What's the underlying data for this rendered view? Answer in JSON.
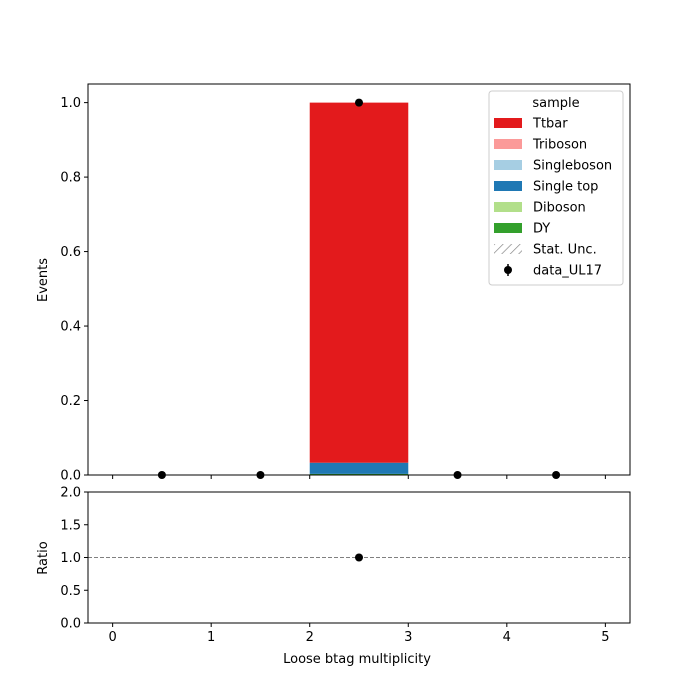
{
  "chart_data": {
    "type": "bar",
    "stacked": true,
    "xlabel": "Loose btag multiplicity",
    "xlim": [
      -0.25,
      5.25
    ],
    "xticks": [
      0,
      1,
      2,
      3,
      4,
      5
    ],
    "bin_edges": [
      0,
      1,
      2,
      3,
      4,
      5
    ],
    "main": {
      "ylabel": "Events",
      "ylim": [
        0,
        1.05
      ],
      "yticks": [
        "0.0",
        "0.2",
        "0.4",
        "0.6",
        "0.8",
        "1.0"
      ],
      "series": [
        {
          "name": "DY",
          "color": "#33a02c",
          "values": [
            0,
            0,
            0.003,
            0,
            0
          ]
        },
        {
          "name": "Diboson",
          "color": "#b2df8a",
          "values": [
            0,
            0,
            0,
            0,
            0
          ]
        },
        {
          "name": "Single top",
          "color": "#1f78b4",
          "values": [
            0,
            0,
            0.03,
            0,
            0
          ]
        },
        {
          "name": "Singleboson",
          "color": "#a6cee3",
          "values": [
            0,
            0,
            0,
            0,
            0
          ]
        },
        {
          "name": "Triboson",
          "color": "#fb9a99",
          "values": [
            0,
            0,
            0,
            0,
            0
          ]
        },
        {
          "name": "Ttbar",
          "color": "#e31a1c",
          "values": [
            0,
            0,
            0.967,
            0,
            0
          ]
        }
      ],
      "data": {
        "name": "data_UL17",
        "x": [
          0.5,
          1.5,
          2.5,
          3.5,
          4.5
        ],
        "y": [
          0,
          0,
          1.0,
          0,
          0
        ]
      }
    },
    "ratio": {
      "ylabel": "Ratio",
      "ylim": [
        0,
        2
      ],
      "yticks": [
        "0.0",
        "0.5",
        "1.0",
        "1.5",
        "2.0"
      ],
      "reference_line": 1.0,
      "points": {
        "x": [
          2.5
        ],
        "y": [
          1.0
        ]
      }
    },
    "legend": {
      "title": "sample",
      "placement": "top-right",
      "entries": [
        {
          "label": "Ttbar",
          "kind": "patch",
          "color": "#e31a1c"
        },
        {
          "label": "Triboson",
          "kind": "patch",
          "color": "#fb9a99"
        },
        {
          "label": "Singleboson",
          "kind": "patch",
          "color": "#a6cee3"
        },
        {
          "label": "Single top",
          "kind": "patch",
          "color": "#1f78b4"
        },
        {
          "label": "Diboson",
          "kind": "patch",
          "color": "#b2df8a"
        },
        {
          "label": "DY",
          "kind": "patch",
          "color": "#33a02c"
        },
        {
          "label": "Stat. Unc.",
          "kind": "hatch",
          "color": "#888888"
        },
        {
          "label": "data_UL17",
          "kind": "marker",
          "color": "#000000"
        }
      ]
    }
  }
}
